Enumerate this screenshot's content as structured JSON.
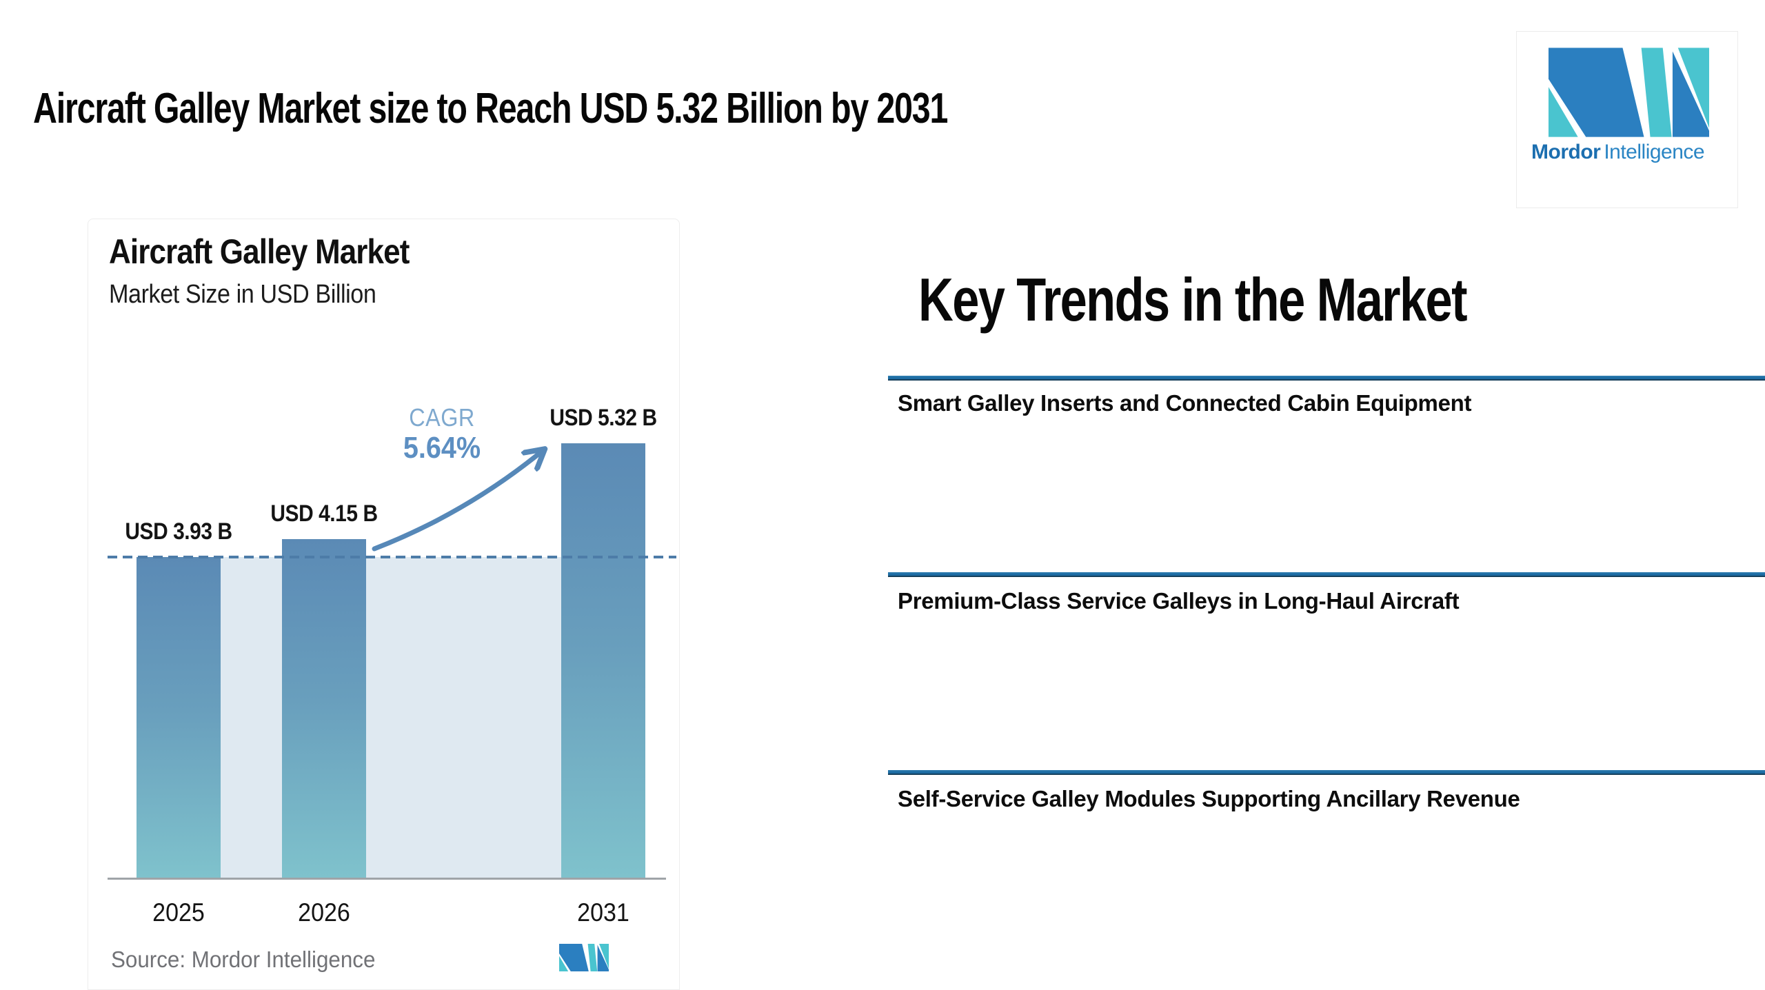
{
  "header": {
    "title": "Aircraft Galley Market size to Reach USD 5.32 Billion by 2031"
  },
  "logo": {
    "brand_bold": "Mordor",
    "brand_light": "Intelligence",
    "blue": "#2b7fc0",
    "teal": "#4ac4cf"
  },
  "chart_card": {
    "title": "Aircraft Galley Market",
    "subtitle": "Market Size in USD Billion",
    "cagr_label": "CAGR",
    "cagr_value": "5.64%",
    "source_label": "Source:",
    "source_value": "Mordor Intelligence"
  },
  "chart_data": {
    "type": "bar",
    "title": "Aircraft Galley Market",
    "subtitle": "Market Size in USD Billion",
    "categories": [
      "2025",
      "2026",
      "2031"
    ],
    "values": [
      3.93,
      4.15,
      5.32
    ],
    "bar_labels": [
      "USD 3.93 B",
      "USD 4.15 B",
      "USD 5.32 B"
    ],
    "cagr_percent": 5.64,
    "xlabel": "",
    "ylabel": "Market Size in USD Billion",
    "ylim": [
      0,
      5.32
    ],
    "baseline_value": 3.93,
    "gridlines": false,
    "legend": false,
    "bar_color_top": "#5b8ab5",
    "bar_color_bottom": "#7fc2cc",
    "area_fill_color": "#dfe9f1",
    "dashed_line_color": "#4d7ca8",
    "arrow_color": "#5688b8"
  },
  "key_trends": {
    "heading": "Key Trends in the Market",
    "rule_color": "#1d6ca3",
    "items": [
      "Smart Galley Inserts and Connected Cabin Equipment",
      "Premium-Class Service Galleys in Long-Haul Aircraft",
      "Self-Service Galley Modules Supporting Ancillary Revenue"
    ]
  }
}
